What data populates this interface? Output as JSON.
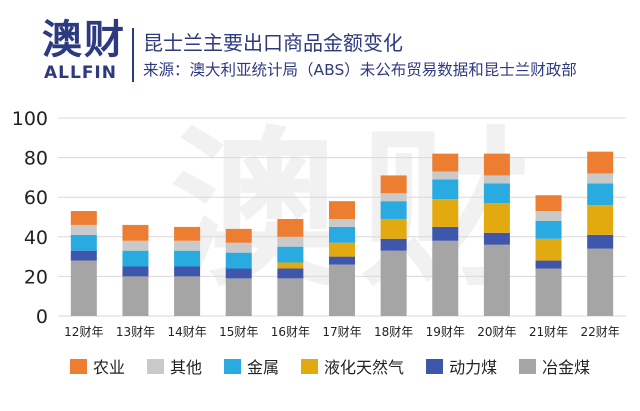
{
  "header": {
    "logo_cn": "澳财",
    "logo_en": "ALLFIN",
    "title": "昆士兰主要出口商品金额变化",
    "subtitle": "来源：澳大利亚统计局（ABS）未公布贸易数据和昆士兰财政部"
  },
  "watermark": "澳财",
  "colors": {
    "brand": "#2e3a80",
    "series": [
      "#ed7d31",
      "#c9c9c9",
      "#29abe2",
      "#e3aa10",
      "#3f56ad",
      "#a5a5a5"
    ]
  },
  "legend": [
    {
      "label": "农业",
      "color": "#ed7d31"
    },
    {
      "label": "其他",
      "color": "#c9c9c9"
    },
    {
      "label": "金属",
      "color": "#29abe2"
    },
    {
      "label": "液化天然气",
      "color": "#e3aa10"
    },
    {
      "label": "动力煤",
      "color": "#3f56ad"
    },
    {
      "label": "冶金煤",
      "color": "#a5a5a5"
    }
  ],
  "chart_data": {
    "type": "bar",
    "stacked": true,
    "categories": [
      "12财年",
      "13财年",
      "14财年",
      "15财年",
      "16财年",
      "17财年",
      "18财年",
      "19财年",
      "20财年",
      "21财年",
      "22财年"
    ],
    "ylim": [
      0,
      100
    ],
    "yticks": [
      0,
      20,
      40,
      60,
      80,
      100
    ],
    "grid": true,
    "legend_position": "bottom",
    "series": [
      {
        "name": "冶金煤",
        "values": [
          28,
          20,
          20,
          19,
          19,
          26,
          33,
          38,
          36,
          24,
          34
        ]
      },
      {
        "name": "动力煤",
        "values": [
          5,
          5,
          5,
          5,
          5,
          4,
          6,
          7,
          6,
          4,
          7
        ]
      },
      {
        "name": "液化天然气",
        "values": [
          0,
          0,
          0,
          0,
          3,
          7,
          10,
          14,
          15,
          11,
          15
        ]
      },
      {
        "name": "金属",
        "values": [
          8,
          8,
          8,
          8,
          8,
          8,
          9,
          10,
          10,
          9,
          11
        ]
      },
      {
        "name": "其他",
        "values": [
          5,
          5,
          5,
          5,
          5,
          4,
          4,
          4,
          4,
          5,
          5
        ]
      },
      {
        "name": "农业",
        "values": [
          7,
          8,
          7,
          7,
          9,
          9,
          9,
          9,
          11,
          8,
          11
        ]
      }
    ]
  }
}
